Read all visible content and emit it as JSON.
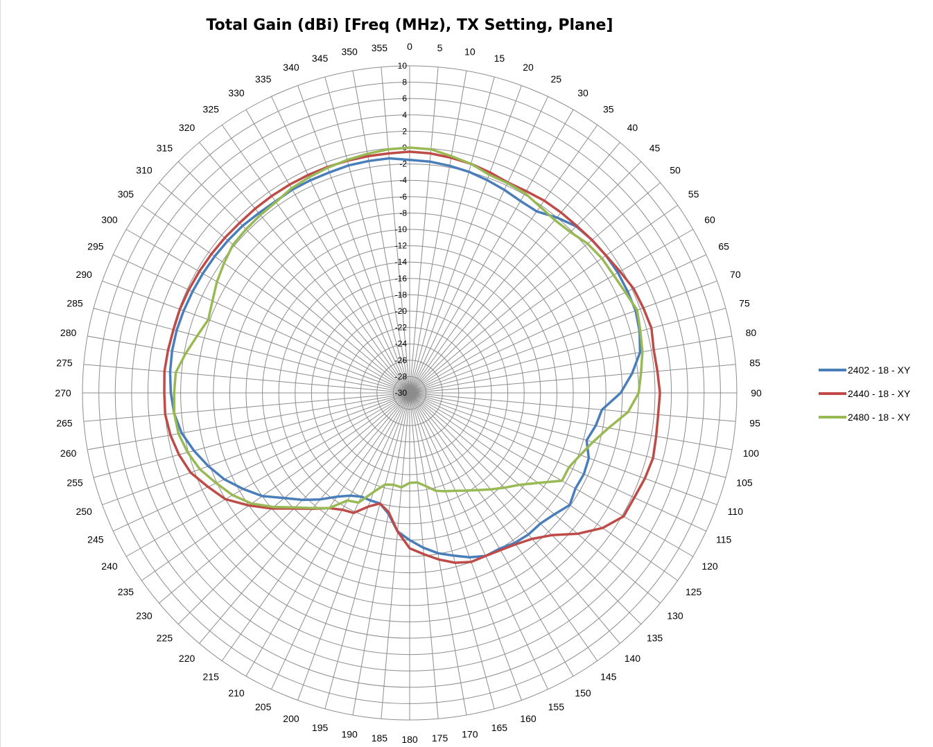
{
  "chart_data": {
    "type": "line",
    "subtype": "polar",
    "title": "Total Gain (dBi) [Freq (MHz), TX Setting, Plane]",
    "angle_labels": [
      "0",
      "5",
      "10",
      "15",
      "20",
      "25",
      "30",
      "35",
      "40",
      "45",
      "50",
      "55",
      "60",
      "65",
      "70",
      "75",
      "80",
      "85",
      "90",
      "95",
      "100",
      "105",
      "110",
      "115",
      "120",
      "125",
      "130",
      "135",
      "140",
      "145",
      "150",
      "155",
      "160",
      "165",
      "170",
      "175",
      "180",
      "185",
      "190",
      "195",
      "200",
      "205",
      "210",
      "215",
      "220",
      "225",
      "230",
      "235",
      "240",
      "245",
      "250",
      "255",
      "260",
      "265",
      "270",
      "275",
      "280",
      "285",
      "290",
      "295",
      "300",
      "305",
      "310",
      "315",
      "320",
      "325",
      "330",
      "335",
      "340",
      "345",
      "350",
      "355"
    ],
    "radial_labels": [
      "-30",
      "-28",
      "-26",
      "-24",
      "-22",
      "-20",
      "-18",
      "-16",
      "-14",
      "-12",
      "-10",
      "-8",
      "-6",
      "-4",
      "-2",
      "0",
      "2",
      "4",
      "6",
      "8",
      "10"
    ],
    "rlim": [
      -30,
      10
    ],
    "grid": true,
    "legend_position": "right",
    "angles_deg": [
      0,
      5,
      10,
      15,
      20,
      25,
      30,
      35,
      40,
      45,
      50,
      55,
      60,
      65,
      70,
      75,
      80,
      85,
      90,
      95,
      100,
      105,
      110,
      115,
      120,
      125,
      130,
      135,
      140,
      145,
      150,
      155,
      160,
      165,
      170,
      175,
      180,
      185,
      190,
      195,
      200,
      205,
      210,
      215,
      220,
      225,
      230,
      235,
      240,
      245,
      250,
      255,
      260,
      265,
      270,
      275,
      280,
      285,
      290,
      295,
      300,
      305,
      310,
      315,
      320,
      325,
      330,
      335,
      340,
      345,
      350,
      355
    ],
    "series": [
      {
        "name": "2402 - 18 - XY",
        "color": "#4a7ebb",
        "values": [
          -1.5,
          -1.6,
          -1.8,
          -2.0,
          -2.3,
          -2.6,
          -2.9,
          -2.9,
          -2.0,
          -1.2,
          -0.9,
          -0.7,
          -0.6,
          -0.6,
          -0.6,
          -0.9,
          -1.4,
          -2.7,
          -4.2,
          -6.4,
          -6.9,
          -7.6,
          -6.7,
          -6.5,
          -6.6,
          -6.1,
          -6.9,
          -7.4,
          -7.4,
          -7.6,
          -8.0,
          -8.0,
          -8.6,
          -9.4,
          -10.1,
          -11.0,
          -12.0,
          -13.0,
          -15.0,
          -16.0,
          -16.0,
          -16.0,
          -15.5,
          -14.5,
          -13.0,
          -11.5,
          -10.0,
          -8.0,
          -6.5,
          -5.0,
          -3.8,
          -2.7,
          -1.7,
          -1.1,
          -0.8,
          -0.6,
          -0.5,
          -0.5,
          -0.6,
          -0.7,
          -0.8,
          -0.9,
          -1.0,
          -1.1,
          -1.3,
          -1.4,
          -1.3,
          -1.3,
          -1.3,
          -1.2,
          -1.2,
          -1.2
        ]
      },
      {
        "name": "2440 - 18 - XY",
        "color": "#be4b48",
        "values": [
          -0.5,
          -0.6,
          -0.8,
          -1.0,
          -1.3,
          -1.6,
          -1.5,
          -1.3,
          -1.2,
          -1.1,
          -0.9,
          -0.7,
          -0.3,
          0.2,
          0.4,
          0.6,
          0.3,
          0.4,
          0.6,
          0.5,
          0.6,
          0.8,
          0.6,
          0.3,
          0.2,
          -1.2,
          -3.2,
          -5.4,
          -6.7,
          -7.4,
          -7.8,
          -8.0,
          -8.0,
          -8.5,
          -9.3,
          -10.2,
          -11.0,
          -13.0,
          -15.2,
          -16.0,
          -15.2,
          -13.8,
          -13.5,
          -12.8,
          -11.5,
          -10.0,
          -8.0,
          -6.0,
          -4.0,
          -2.8,
          -1.5,
          -0.8,
          -0.3,
          0.0,
          0.0,
          0.1,
          0.0,
          -0.1,
          -0.1,
          -0.2,
          -0.3,
          -0.4,
          -0.5,
          -0.6,
          -0.6,
          -0.6,
          -0.6,
          -0.6,
          -0.6,
          -0.6,
          -0.6,
          -0.6
        ]
      },
      {
        "name": "2480 - 18 - XY",
        "color": "#98b954",
        "values": [
          0.0,
          -0.1,
          -0.6,
          -1.0,
          -1.6,
          -1.7,
          -1.8,
          -2.2,
          -2.4,
          -2.2,
          -1.6,
          -1.3,
          -1.2,
          -0.9,
          -0.4,
          -0.8,
          -1.1,
          -1.6,
          -2.0,
          -3.2,
          -5.3,
          -6.8,
          -7.8,
          -8.5,
          -8.5,
          -10.8,
          -12.5,
          -13.6,
          -14.6,
          -15.5,
          -16.2,
          -16.8,
          -17.2,
          -17.6,
          -18.4,
          -19.0,
          -19.0,
          -18.4,
          -18.6,
          -18.4,
          -17.1,
          -15.2,
          -14.8,
          -12.8,
          -11.6,
          -10.2,
          -8.3,
          -6.4,
          -5.0,
          -3.9,
          -2.7,
          -1.9,
          -1.3,
          -1.1,
          -1.2,
          -1.3,
          -2.2,
          -3.1,
          -3.8,
          -3.4,
          -2.8,
          -2.3,
          -1.8,
          -1.7,
          -1.6,
          -1.5,
          -1.1,
          -0.9,
          -0.7,
          -0.5,
          -0.3,
          -0.1
        ]
      }
    ]
  }
}
